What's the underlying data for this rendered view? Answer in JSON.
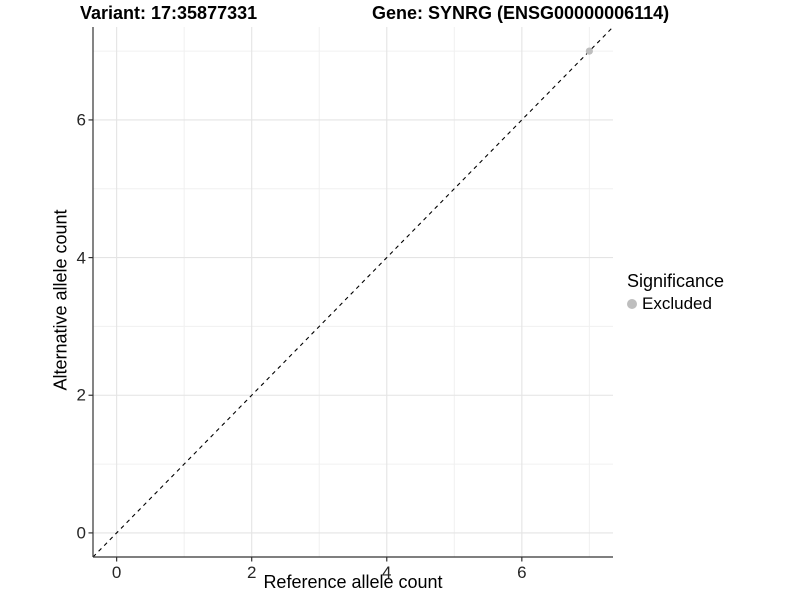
{
  "chart_data": {
    "type": "scatter",
    "title_variant": "Variant: 17:35877331",
    "title_gene": "Gene: SYNRG (ENSG00000006114)",
    "xlabel": "Reference allele count",
    "ylabel": "Alternative allele count",
    "xlim": [
      -0.35,
      7.35
    ],
    "ylim": [
      -0.35,
      7.35
    ],
    "x_ticks": [
      0,
      2,
      4,
      6
    ],
    "y_ticks": [
      0,
      2,
      4,
      6
    ],
    "x_minor_ticks": [
      1,
      3,
      5,
      7
    ],
    "y_minor_ticks": [
      1,
      3,
      5,
      7
    ],
    "grid": "major+minor",
    "legend_position": "right",
    "reference_line": {
      "slope": 1,
      "intercept": 0,
      "style": "dashed",
      "color": "#000000"
    },
    "series": [
      {
        "name": "Excluded",
        "color": "#bebebe",
        "points": [
          {
            "x": 7,
            "y": 7
          }
        ]
      }
    ],
    "legend": {
      "title": "Significance",
      "items": [
        {
          "label": "Excluded",
          "color": "#bebebe"
        }
      ]
    }
  },
  "colors": {
    "background": "#ffffff",
    "axis_line": "#333333",
    "tick_mark": "#333333",
    "tick_label": "#262626",
    "grid_major": "#e4e4e4",
    "grid_minor": "#f0f0f0"
  }
}
